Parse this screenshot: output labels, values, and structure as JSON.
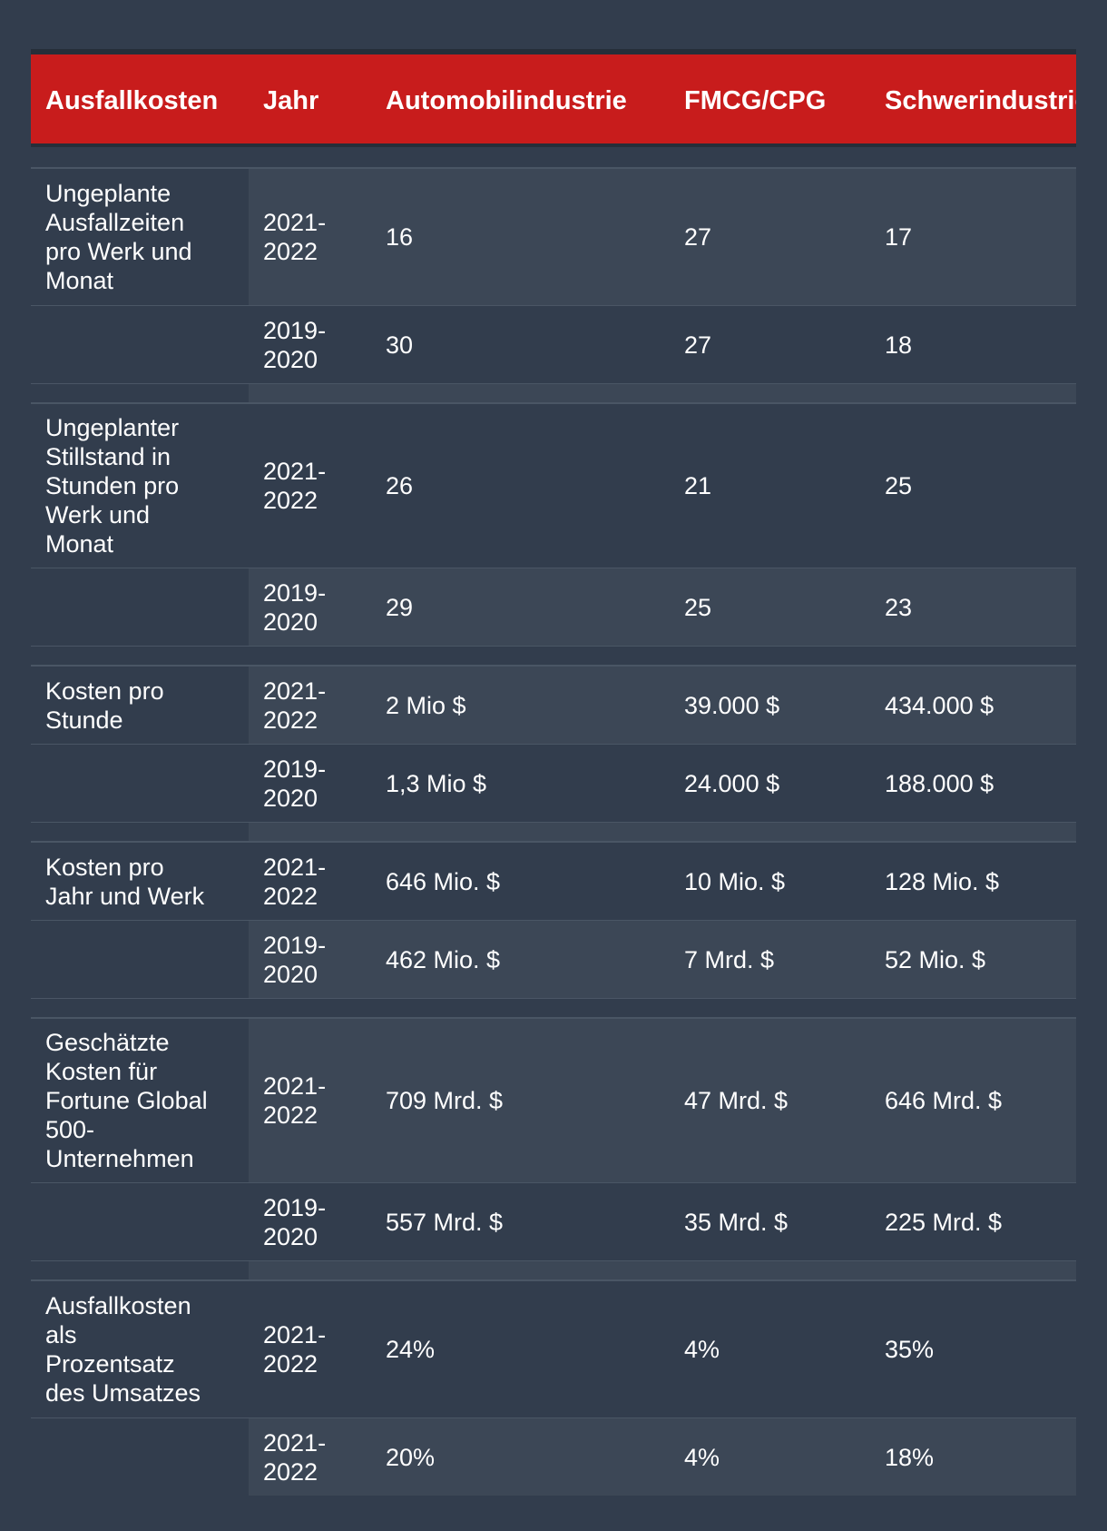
{
  "headers": [
    "Ausfallkosten",
    "Jahr",
    "Automobilindustrie",
    "FMCG/CPG",
    "Schwerindustrie"
  ],
  "groups": [
    {
      "label": "Ungeplante\nAusfallzeiten\npro Werk und\nMonat",
      "rows": [
        {
          "year": "2021-\n2022",
          "auto": "16",
          "fmcg": "27",
          "schwer": "17"
        },
        {
          "year": "2019-\n2020",
          "auto": "30",
          "fmcg": "27",
          "schwer": "18"
        }
      ]
    },
    {
      "label": "Ungeplanter\nStillstand in\nStunden pro\nWerk und\nMonat",
      "rows": [
        {
          "year": "2021-\n2022",
          "auto": "26",
          "fmcg": "21",
          "schwer": "25"
        },
        {
          "year": "2019-\n2020",
          "auto": "29",
          "fmcg": "25",
          "schwer": "23"
        }
      ]
    },
    {
      "label": "Kosten pro\nStunde",
      "rows": [
        {
          "year": "2021-\n2022",
          "auto": "2 Mio $",
          "fmcg": "39.000 $",
          "schwer": "434.000 $"
        },
        {
          "year": "2019-\n2020",
          "auto": "1,3 Mio $",
          "fmcg": "24.000 $",
          "schwer": "188.000 $"
        }
      ]
    },
    {
      "label": "Kosten pro\nJahr und Werk",
      "rows": [
        {
          "year": "2021-\n2022",
          "auto": "646 Mio. $",
          "fmcg": "10 Mio. $",
          "schwer": "128 Mio. $"
        },
        {
          "year": "2019-\n2020",
          "auto": "462 Mio. $",
          "fmcg": "7 Mrd. $",
          "schwer": "52 Mio. $"
        }
      ]
    },
    {
      "label": "Geschätzte\nKosten für\nFortune Global\n500-\nUnternehmen",
      "rows": [
        {
          "year": "2021-\n2022",
          "auto": "709 Mrd. $",
          "fmcg": "47 Mrd. $",
          "schwer": "646 Mrd. $"
        },
        {
          "year": "2019-\n2020",
          "auto": "557 Mrd. $",
          "fmcg": "35 Mrd. $",
          "schwer": "225 Mrd. $"
        }
      ]
    },
    {
      "label": "Ausfallkosten\nals\nProzentsatz\ndes Umsatzes",
      "rows": [
        {
          "year": "2021-\n2022",
          "auto": "24%",
          "fmcg": "4%",
          "schwer": "35%"
        },
        {
          "year": "2021-\n2022",
          "auto": "20%",
          "fmcg": "4%",
          "schwer": "18%"
        }
      ]
    }
  ]
}
